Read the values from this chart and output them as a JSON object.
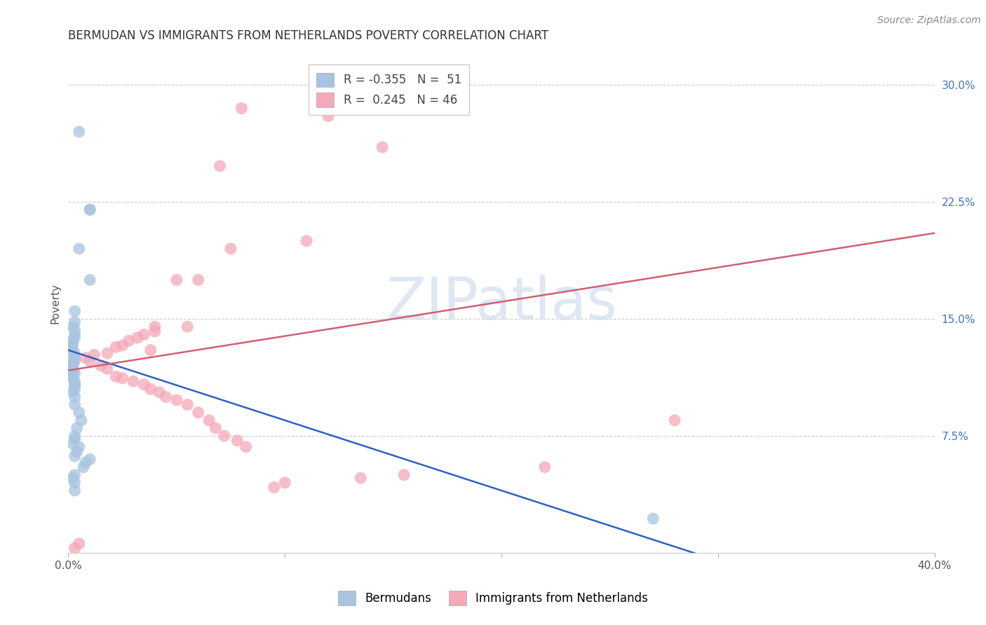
{
  "title": "BERMUDAN VS IMMIGRANTS FROM NETHERLANDS POVERTY CORRELATION CHART",
  "source": "Source: ZipAtlas.com",
  "ylabel": "Poverty",
  "xlim": [
    0.0,
    0.4
  ],
  "ylim": [
    0.0,
    0.32
  ],
  "yticks": [
    0.075,
    0.15,
    0.225,
    0.3
  ],
  "ytick_labels": [
    "7.5%",
    "15.0%",
    "22.5%",
    "30.0%"
  ],
  "xticks": [
    0.0,
    0.1,
    0.2,
    0.3,
    0.4
  ],
  "xtick_labels": [
    "0.0%",
    "",
    "",
    "",
    "40.0%"
  ],
  "blue_R": -0.355,
  "blue_N": 51,
  "pink_R": 0.245,
  "pink_N": 46,
  "blue_color": "#a8c4e0",
  "pink_color": "#f4a8b8",
  "blue_line_color": "#3060c0",
  "pink_line_color": "#d06070",
  "watermark_color": "#c8d8ea",
  "legend_label_blue": "Bermudans",
  "legend_label_pink": "Immigrants from Netherlands",
  "blue_points_x": [
    0.005,
    0.01,
    0.01,
    0.005,
    0.01,
    0.003,
    0.003,
    0.002,
    0.003,
    0.003,
    0.003,
    0.002,
    0.002,
    0.002,
    0.002,
    0.003,
    0.002,
    0.003,
    0.003,
    0.002,
    0.002,
    0.002,
    0.002,
    0.002,
    0.003,
    0.002,
    0.002,
    0.003,
    0.003,
    0.003,
    0.003,
    0.002,
    0.003,
    0.003,
    0.005,
    0.006,
    0.004,
    0.003,
    0.003,
    0.002,
    0.005,
    0.004,
    0.003,
    0.01,
    0.008,
    0.007,
    0.003,
    0.002,
    0.27,
    0.003,
    0.003
  ],
  "blue_points_y": [
    0.27,
    0.22,
    0.22,
    0.195,
    0.175,
    0.155,
    0.148,
    0.145,
    0.143,
    0.14,
    0.138,
    0.136,
    0.135,
    0.133,
    0.13,
    0.128,
    0.126,
    0.125,
    0.123,
    0.121,
    0.12,
    0.119,
    0.117,
    0.116,
    0.115,
    0.113,
    0.112,
    0.11,
    0.108,
    0.107,
    0.105,
    0.103,
    0.1,
    0.095,
    0.09,
    0.085,
    0.08,
    0.075,
    0.073,
    0.07,
    0.068,
    0.065,
    0.062,
    0.06,
    0.058,
    0.055,
    0.05,
    0.048,
    0.022,
    0.045,
    0.04
  ],
  "pink_points_x": [
    0.08,
    0.12,
    0.145,
    0.07,
    0.11,
    0.075,
    0.05,
    0.06,
    0.055,
    0.04,
    0.04,
    0.035,
    0.032,
    0.028,
    0.025,
    0.022,
    0.038,
    0.018,
    0.012,
    0.008,
    0.01,
    0.015,
    0.018,
    0.022,
    0.025,
    0.03,
    0.035,
    0.038,
    0.042,
    0.045,
    0.05,
    0.055,
    0.06,
    0.065,
    0.068,
    0.072,
    0.078,
    0.082,
    0.28,
    0.22,
    0.155,
    0.135,
    0.1,
    0.095,
    0.003,
    0.005
  ],
  "pink_points_y": [
    0.285,
    0.28,
    0.26,
    0.248,
    0.2,
    0.195,
    0.175,
    0.175,
    0.145,
    0.145,
    0.142,
    0.14,
    0.138,
    0.136,
    0.133,
    0.132,
    0.13,
    0.128,
    0.127,
    0.125,
    0.123,
    0.12,
    0.118,
    0.113,
    0.112,
    0.11,
    0.108,
    0.105,
    0.103,
    0.1,
    0.098,
    0.095,
    0.09,
    0.085,
    0.08,
    0.075,
    0.072,
    0.068,
    0.085,
    0.055,
    0.05,
    0.048,
    0.045,
    0.042,
    0.003,
    0.006
  ],
  "blue_trend_x": [
    0.0,
    0.3
  ],
  "blue_trend_y": [
    0.13,
    -0.005
  ],
  "pink_trend_x": [
    0.0,
    0.4
  ],
  "pink_trend_y": [
    0.117,
    0.205
  ],
  "title_fontsize": 12,
  "axis_label_fontsize": 11,
  "tick_fontsize": 11,
  "legend_fontsize": 12,
  "source_fontsize": 10
}
